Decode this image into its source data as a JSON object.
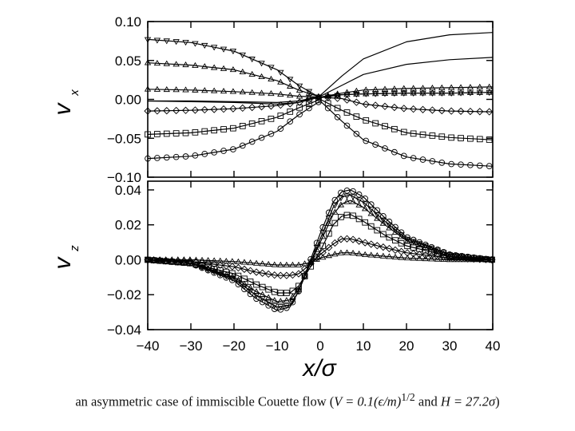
{
  "caption": {
    "pre": "an asymmetric case of immiscible Couette flow (",
    "v_expr": "V = 0.1(ϵ/m)",
    "v_exp": "1/2",
    "mid": " and ",
    "h_expr": "H = 27.2σ",
    "post": ")"
  },
  "chart_data": [
    {
      "type": "line",
      "panel": "top",
      "ylabel": "v",
      "ylabel_sub": "x",
      "xlim": [
        -40,
        40
      ],
      "ylim": [
        -0.1,
        0.1
      ],
      "yticks": [
        "0.10",
        "0.05",
        "0.00",
        "−0.05",
        "−0.10"
      ],
      "ytick_values": [
        0.1,
        0.05,
        0.0,
        -0.05,
        -0.1
      ],
      "series": [
        {
          "marker": "triangle-down",
          "x": [
            -40,
            -30,
            -20,
            -10,
            -5,
            0,
            5,
            10,
            20,
            30,
            40
          ],
          "y": [
            0.077,
            0.073,
            0.062,
            0.038,
            0.018,
            0.002,
            0.006,
            0.007,
            0.008,
            0.008,
            0.009
          ]
        },
        {
          "marker": "triangle-up",
          "x": [
            -40,
            -30,
            -20,
            -10,
            -5,
            0,
            5,
            10,
            20,
            30,
            40
          ],
          "y": [
            0.047,
            0.044,
            0.038,
            0.024,
            0.012,
            0.003,
            0.006,
            0.007,
            0.008,
            0.008,
            0.009
          ]
        },
        {
          "marker": "triangle",
          "x": [
            -40,
            -30,
            -20,
            -10,
            -5,
            0,
            5,
            10,
            20,
            30,
            40
          ],
          "y": [
            0.013,
            0.012,
            0.01,
            0.007,
            0.004,
            0.003,
            0.008,
            0.012,
            0.014,
            0.015,
            0.016
          ]
        },
        {
          "marker": "diamond",
          "x": [
            -40,
            -30,
            -20,
            -10,
            -5,
            0,
            5,
            10,
            20,
            30,
            40
          ],
          "y": [
            -0.015,
            -0.014,
            -0.012,
            -0.008,
            -0.004,
            0.003,
            0.001,
            -0.006,
            -0.012,
            -0.015,
            -0.016
          ]
        },
        {
          "marker": "square",
          "x": [
            -40,
            -30,
            -20,
            -10,
            -5,
            0,
            5,
            10,
            20,
            30,
            40
          ],
          "y": [
            -0.045,
            -0.043,
            -0.037,
            -0.023,
            -0.011,
            0.0,
            -0.014,
            -0.026,
            -0.043,
            -0.049,
            -0.052
          ]
        },
        {
          "marker": "circle",
          "x": [
            -40,
            -30,
            -20,
            -10,
            -5,
            0,
            5,
            10,
            20,
            30,
            40
          ],
          "y": [
            -0.076,
            -0.073,
            -0.064,
            -0.041,
            -0.02,
            -0.002,
            -0.028,
            -0.052,
            -0.074,
            -0.083,
            -0.086
          ]
        },
        {
          "marker": "none",
          "x": [
            -40,
            -30,
            -20,
            -10,
            -5,
            0,
            5,
            10,
            20,
            30,
            40
          ],
          "y": [
            -0.002,
            -0.003,
            -0.004,
            -0.006,
            -0.004,
            0.005,
            0.03,
            0.052,
            0.074,
            0.083,
            0.086
          ]
        },
        {
          "marker": "none",
          "x": [
            -40,
            -30,
            -20,
            -10,
            -5,
            0,
            5,
            10,
            20,
            30,
            40
          ],
          "y": [
            -0.002,
            -0.002,
            -0.003,
            -0.004,
            -0.002,
            0.004,
            0.018,
            0.032,
            0.045,
            0.051,
            0.054
          ]
        }
      ],
      "grid": false
    },
    {
      "type": "line",
      "panel": "bottom",
      "ylabel": "v",
      "ylabel_sub": "z",
      "xlabel": "x/σ",
      "xlim": [
        -40,
        40
      ],
      "xticks": [
        "−40",
        "−30",
        "−20",
        "−10",
        "0",
        "10",
        "20",
        "30",
        "40"
      ],
      "xtick_values": [
        -40,
        -30,
        -20,
        -10,
        0,
        10,
        20,
        30,
        40
      ],
      "ylim": [
        -0.04,
        0.045
      ],
      "yticks": [
        "0.04",
        "0.02",
        "0.00",
        "−0.02",
        "−0.04"
      ],
      "ytick_values": [
        0.04,
        0.02,
        0.0,
        -0.02,
        -0.04
      ],
      "series": [
        {
          "marker": "circle",
          "x": [
            -40,
            -30,
            -20,
            -15,
            -10,
            -7,
            -5,
            -3,
            0,
            3,
            5,
            7,
            10,
            15,
            20,
            30,
            40
          ],
          "y": [
            0.0,
            -0.002,
            -0.012,
            -0.022,
            -0.029,
            -0.027,
            -0.018,
            -0.005,
            0.015,
            0.033,
            0.039,
            0.04,
            0.036,
            0.024,
            0.013,
            0.003,
            0.0
          ]
        },
        {
          "marker": "triangle-down",
          "x": [
            -40,
            -30,
            -20,
            -15,
            -10,
            -7,
            -5,
            -3,
            0,
            3,
            5,
            7,
            10,
            15,
            20,
            30,
            40
          ],
          "y": [
            0.0,
            -0.002,
            -0.011,
            -0.02,
            -0.027,
            -0.026,
            -0.018,
            -0.006,
            0.012,
            0.03,
            0.036,
            0.037,
            0.033,
            0.022,
            0.012,
            0.003,
            0.0
          ]
        },
        {
          "marker": "triangle-up",
          "x": [
            -40,
            -30,
            -20,
            -15,
            -10,
            -7,
            -5,
            -3,
            0,
            3,
            5,
            7,
            10,
            15,
            20,
            30,
            40
          ],
          "y": [
            0.0,
            -0.002,
            -0.01,
            -0.018,
            -0.024,
            -0.023,
            -0.017,
            -0.006,
            0.01,
            0.026,
            0.032,
            0.034,
            0.03,
            0.02,
            0.011,
            0.002,
            0.0
          ]
        },
        {
          "marker": "square",
          "x": [
            -40,
            -30,
            -20,
            -15,
            -10,
            -7,
            -5,
            -3,
            0,
            3,
            5,
            7,
            10,
            15,
            20,
            30,
            40
          ],
          "y": [
            0.0,
            -0.002,
            -0.008,
            -0.014,
            -0.019,
            -0.019,
            -0.015,
            -0.007,
            0.005,
            0.02,
            0.025,
            0.026,
            0.022,
            0.014,
            0.008,
            0.002,
            0.0
          ]
        },
        {
          "marker": "diamond",
          "x": [
            -40,
            -30,
            -20,
            -15,
            -10,
            -7,
            -5,
            -3,
            0,
            3,
            5,
            7,
            10,
            15,
            20,
            30,
            40
          ],
          "y": [
            0.0,
            -0.001,
            -0.004,
            -0.007,
            -0.009,
            -0.009,
            -0.008,
            -0.004,
            0.003,
            0.009,
            0.012,
            0.012,
            0.01,
            0.007,
            0.004,
            0.001,
            0.0
          ]
        },
        {
          "marker": "triangle",
          "x": [
            -40,
            -30,
            -20,
            -15,
            -10,
            -7,
            -5,
            -3,
            0,
            3,
            5,
            7,
            10,
            15,
            20,
            30,
            40
          ],
          "y": [
            0.0,
            0.0,
            -0.001,
            -0.002,
            -0.003,
            -0.003,
            -0.003,
            -0.002,
            0.001,
            0.003,
            0.004,
            0.004,
            0.003,
            0.002,
            0.001,
            0.0,
            0.0
          ]
        }
      ],
      "grid": false
    }
  ]
}
